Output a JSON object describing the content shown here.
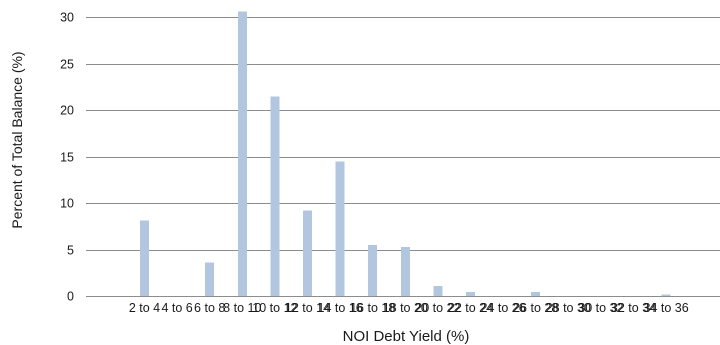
{
  "chart_data": {
    "type": "bar",
    "xlabel": "NOI Debt Yield (%)",
    "ylabel": "Percent of Total Balance (%)",
    "ylim": [
      0,
      31
    ],
    "yticks": [
      0,
      5,
      10,
      15,
      20,
      25,
      30
    ],
    "grid": true,
    "bar_color": "#b3c6e0",
    "categories": [
      "2 to 4",
      "4 to 6",
      "6 to 8",
      "8 to 10",
      "10 to 12",
      "12 to 14",
      "14 to 16",
      "16 to 18",
      "18 to 20",
      "20 to 22",
      "22 to 24",
      "24 to 26",
      "26 to 28",
      "28 to 30",
      "30 to 32",
      "32 to 34",
      "34 to 36"
    ],
    "values": [
      8.1,
      0,
      3.6,
      30.6,
      21.5,
      9.2,
      14.5,
      5.5,
      5.3,
      1.1,
      0.45,
      0,
      0.45,
      0,
      0,
      0,
      0.15
    ]
  }
}
